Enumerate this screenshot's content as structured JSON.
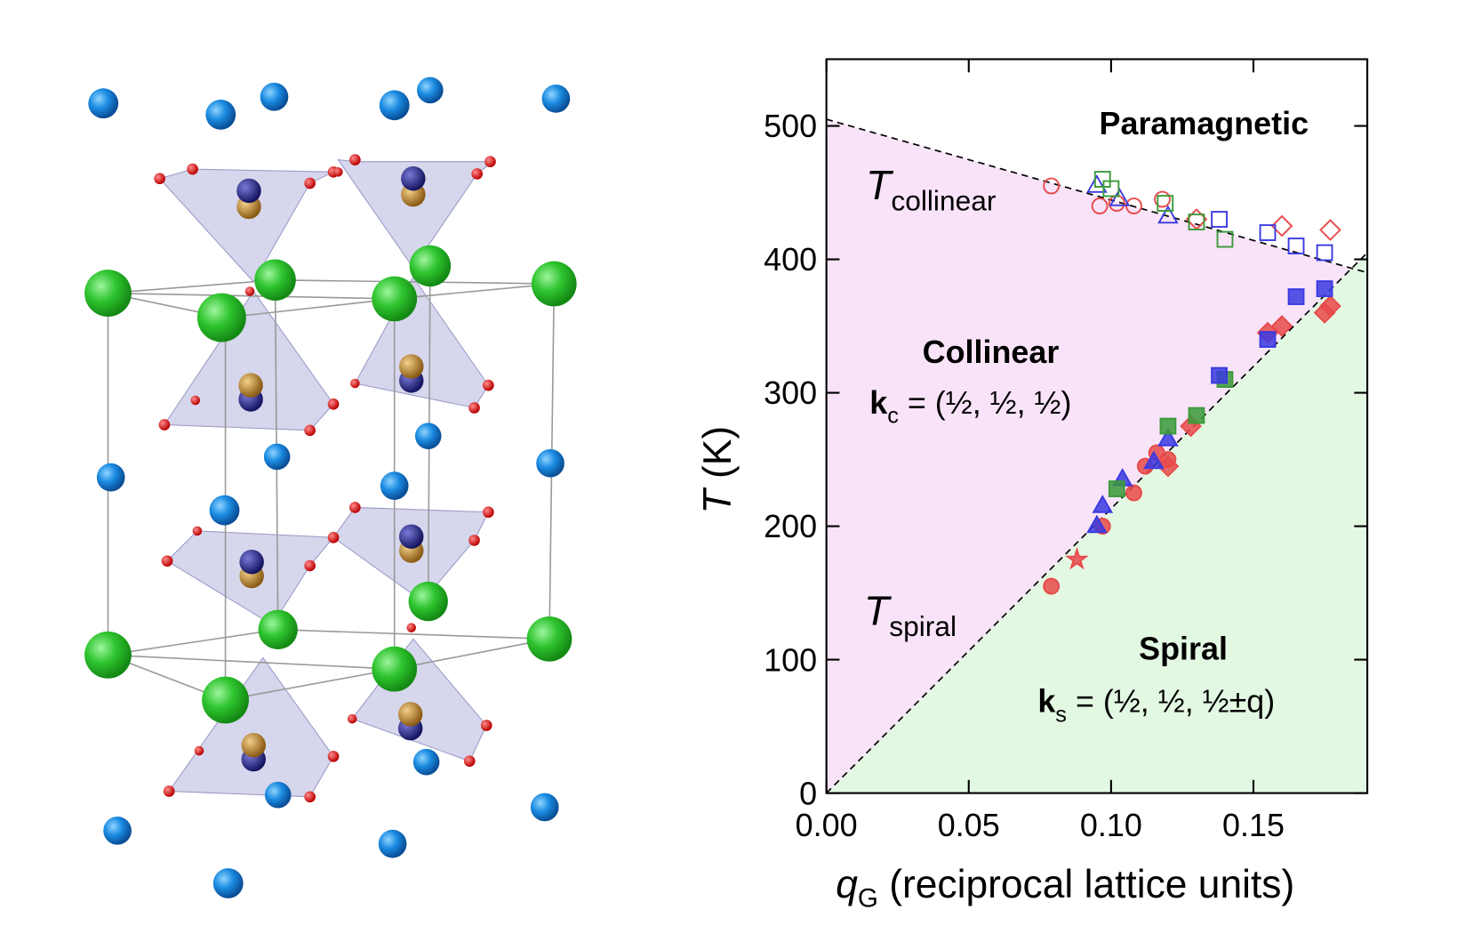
{
  "chart_data": {
    "type": "scatter",
    "xlim": [
      0,
      0.19
    ],
    "ylim": [
      0,
      550
    ],
    "xticks": [
      {
        "value": 0,
        "label": "0.00"
      },
      {
        "value": 0.05,
        "label": "0.05"
      },
      {
        "value": 0.1,
        "label": "0.10"
      },
      {
        "value": 0.15,
        "label": "0.15"
      }
    ],
    "yticks": [
      0,
      100,
      200,
      300,
      400,
      500
    ],
    "xlabel": [
      "q",
      "G",
      " (reciprocal lattice units)"
    ],
    "ylabel": [
      "T",
      " (K)"
    ],
    "labels": {
      "paramagnetic": "Paramagnetic",
      "collinear": "Collinear",
      "spiral": "Spiral",
      "k_c": [
        "k",
        "c",
        " = (½, ½, ½)"
      ],
      "k_s": [
        "k",
        "s",
        " = (½, ½, ½±q)"
      ],
      "t_collinear": [
        "T",
        "collinear"
      ],
      "t_spiral": [
        "T",
        "spiral"
      ]
    },
    "lines": [
      {
        "x": [
          0,
          0.19
        ],
        "y": [
          505,
          390
        ]
      },
      {
        "x": [
          0,
          0.19
        ],
        "y": [
          0,
          405
        ]
      }
    ],
    "region_colors": [
      "#f8e3f8",
      "#e3f8e3"
    ],
    "series": [
      {
        "color": "#e84a4a",
        "marker": "circle",
        "filled": false,
        "x": [
          0.079,
          0.096,
          0.102,
          0.108,
          0.118
        ],
        "values": [
          455,
          440,
          442,
          440,
          445
        ]
      },
      {
        "color": "#e84a4a",
        "marker": "diamond",
        "filled": false,
        "x": [
          0.13,
          0.16,
          0.177
        ],
        "values": [
          430,
          425,
          422
        ]
      },
      {
        "color": "#3a3ae0",
        "marker": "triangle",
        "filled": false,
        "x": [
          0.095,
          0.103,
          0.12
        ],
        "values": [
          455,
          445,
          432
        ]
      },
      {
        "color": "#3a9a3a",
        "marker": "square",
        "filled": false,
        "x": [
          0.097,
          0.1,
          0.119,
          0.13,
          0.14
        ],
        "values": [
          460,
          453,
          442,
          428,
          415
        ]
      },
      {
        "color": "#3a3ae0",
        "marker": "square",
        "filled": false,
        "x": [
          0.138,
          0.155,
          0.165,
          0.175
        ],
        "values": [
          430,
          420,
          410,
          405
        ]
      },
      {
        "color": "#e84a4a",
        "marker": "circle",
        "filled": true,
        "x": [
          0.079,
          0.097,
          0.108,
          0.112,
          0.116,
          0.12
        ],
        "values": [
          155,
          200,
          225,
          245,
          255,
          250
        ]
      },
      {
        "color": "#e84a4a",
        "marker": "star",
        "filled": true,
        "x": [
          0.088
        ],
        "values": [
          175
        ]
      },
      {
        "color": "#e84a4a",
        "marker": "diamond",
        "filled": true,
        "x": [
          0.12,
          0.128,
          0.155,
          0.16,
          0.175,
          0.177
        ],
        "values": [
          245,
          275,
          345,
          350,
          360,
          365
        ]
      },
      {
        "color": "#3a3ae0",
        "marker": "triangle",
        "filled": true,
        "x": [
          0.095,
          0.097,
          0.104,
          0.115,
          0.12
        ],
        "values": [
          200,
          215,
          235,
          248,
          265
        ]
      },
      {
        "color": "#3a9a3a",
        "marker": "square",
        "filled": true,
        "x": [
          0.102,
          0.12,
          0.13,
          0.14
        ],
        "values": [
          228,
          275,
          283,
          310
        ]
      },
      {
        "color": "#3a3ae0",
        "marker": "square",
        "filled": true,
        "x": [
          0.138,
          0.155,
          0.165,
          0.175
        ],
        "values": [
          313,
          340,
          372,
          378
        ]
      }
    ]
  }
}
